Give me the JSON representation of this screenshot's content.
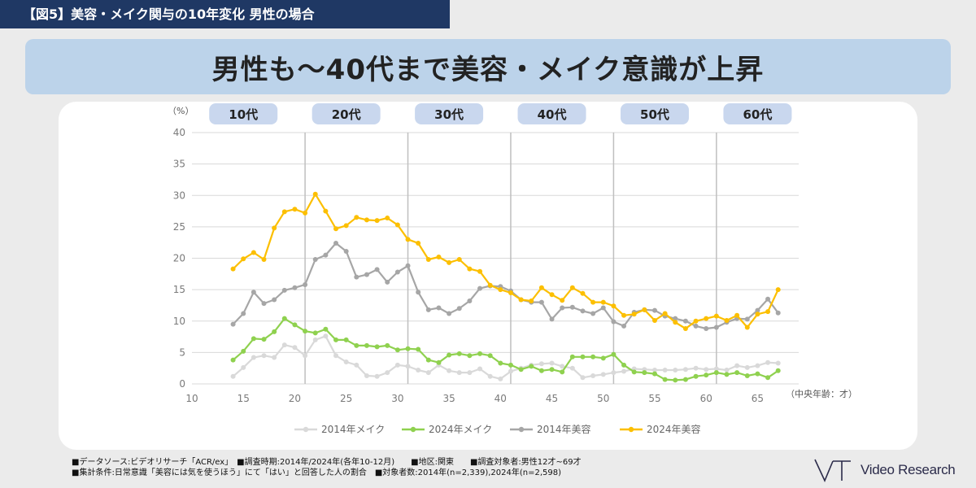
{
  "header": {
    "tag": "【図5】美容・メイク関与の10年変化 男性の場合",
    "headline": "男性も～40代まで美容・メイク意識が上昇"
  },
  "chart_data": {
    "type": "line",
    "ylabel": "（%）",
    "xlabel": "（中央年齢：才）",
    "ylim": [
      0,
      40
    ],
    "yticks": [
      0,
      5,
      10,
      15,
      20,
      25,
      30,
      35,
      40
    ],
    "xlim": [
      10,
      69
    ],
    "xticks": [
      10,
      15,
      20,
      25,
      30,
      35,
      40,
      45,
      50,
      55,
      60,
      65
    ],
    "grid": "horizontal",
    "legend_position": "bottom",
    "age_groups": [
      {
        "label": "10代",
        "center": 15
      },
      {
        "label": "20代",
        "center": 25
      },
      {
        "label": "30代",
        "center": 35
      },
      {
        "label": "40代",
        "center": 45
      },
      {
        "label": "50代",
        "center": 55
      },
      {
        "label": "60代",
        "center": 65
      }
    ],
    "dividers": [
      21,
      31,
      41,
      51,
      61
    ],
    "x": [
      14,
      15,
      16,
      17,
      18,
      19,
      20,
      21,
      22,
      23,
      24,
      25,
      26,
      27,
      28,
      29,
      30,
      31,
      32,
      33,
      34,
      35,
      36,
      37,
      38,
      39,
      40,
      41,
      42,
      43,
      44,
      45,
      46,
      47,
      48,
      49,
      50,
      51,
      52,
      53,
      54,
      55,
      56,
      57,
      58,
      59,
      60,
      61,
      62,
      63,
      64,
      65,
      66,
      67
    ],
    "series": [
      {
        "name": "2014年メイク",
        "color": "#d9d9d9",
        "values": [
          1.2,
          2.6,
          4.2,
          4.5,
          4.2,
          6.2,
          5.8,
          4.5,
          7.0,
          7.6,
          4.5,
          3.5,
          3.0,
          1.3,
          1.2,
          1.8,
          3.0,
          2.8,
          2.2,
          1.8,
          3.0,
          2.1,
          1.8,
          1.8,
          2.4,
          1.2,
          0.8,
          2.0,
          2.5,
          3.0,
          3.2,
          3.3,
          2.8,
          2.5,
          1.0,
          1.3,
          1.5,
          1.8,
          2.0,
          2.4,
          2.3,
          2.2,
          2.2,
          2.2,
          2.3,
          2.5,
          2.3,
          2.4,
          2.2,
          2.9,
          2.6,
          2.9,
          3.4,
          3.3
        ]
      },
      {
        "name": "2024年メイク",
        "color": "#8fd14f",
        "values": [
          3.8,
          5.2,
          7.2,
          7.1,
          8.3,
          10.4,
          9.4,
          8.4,
          8.1,
          8.7,
          7.0,
          7.0,
          6.1,
          6.1,
          5.9,
          6.1,
          5.4,
          5.6,
          5.5,
          3.8,
          3.4,
          4.6,
          4.8,
          4.5,
          4.8,
          4.5,
          3.3,
          3.0,
          2.3,
          2.8,
          2.1,
          2.3,
          1.9,
          4.3,
          4.3,
          4.3,
          4.1,
          4.7,
          3.0,
          1.9,
          1.8,
          1.6,
          0.7,
          0.6,
          0.7,
          1.2,
          1.4,
          1.8,
          1.5,
          1.8,
          1.3,
          1.6,
          1.0,
          2.1
        ]
      },
      {
        "name": "2014年美容",
        "color": "#a6a6a6",
        "values": [
          9.5,
          11.2,
          14.6,
          12.8,
          13.4,
          14.9,
          15.3,
          15.8,
          19.8,
          20.5,
          22.4,
          21.1,
          17.0,
          17.4,
          18.2,
          16.2,
          17.8,
          18.8,
          14.6,
          11.8,
          12.1,
          11.2,
          12.0,
          13.2,
          15.2,
          15.6,
          15.5,
          14.8,
          13.4,
          13.0,
          13.0,
          10.3,
          12.1,
          12.2,
          11.6,
          11.2,
          12.1,
          9.9,
          9.2,
          11.4,
          11.8,
          11.7,
          10.8,
          10.4,
          10.0,
          9.2,
          8.8,
          9.0,
          9.8,
          10.4,
          10.3,
          11.7,
          13.5,
          11.3
        ]
      },
      {
        "name": "2024年美容",
        "color": "#fcbf00",
        "values": [
          18.3,
          19.9,
          20.9,
          19.8,
          24.8,
          27.4,
          27.8,
          27.2,
          30.2,
          27.5,
          24.7,
          25.2,
          26.5,
          26.1,
          26.0,
          26.4,
          25.3,
          23.0,
          22.4,
          19.8,
          20.2,
          19.3,
          19.8,
          18.3,
          17.9,
          15.7,
          15.0,
          14.5,
          13.4,
          13.2,
          15.3,
          14.2,
          13.3,
          15.3,
          14.4,
          13.0,
          13.0,
          12.4,
          10.9,
          11.1,
          11.8,
          10.1,
          11.2,
          9.8,
          8.8,
          10.0,
          10.4,
          10.8,
          10.1,
          10.9,
          9.0,
          11.1,
          11.5,
          15.0
        ]
      }
    ]
  },
  "footnotes": [
    "■データソース:ビデオリサーチ「ACR/ex」　■調査時期:2014年/2024年(各年10-12月)　　■地区:関東　　■調査対象者:男性12才~69才",
    "■集計条件:日常意識「美容には気を使うほう」にて「はい」と回答した人の割合　■対象者数:2014年(n=2,339),2024年(n=2,598)"
  ],
  "brand": {
    "name": "Video Research",
    "logo_icon": "vr-monogram-icon"
  }
}
